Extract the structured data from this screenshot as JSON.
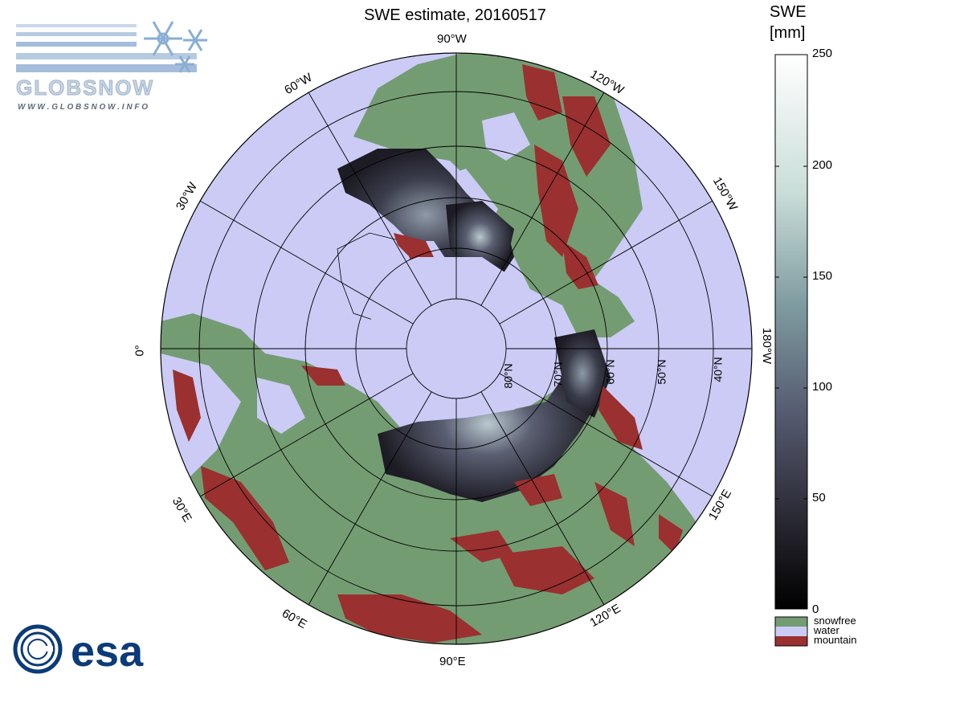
{
  "title": "SWE estimate, 20160517",
  "colorbar": {
    "label_line1": "SWE",
    "label_line2": "[mm]",
    "ticks": [
      "250",
      "200",
      "150",
      "100",
      "50",
      "0"
    ],
    "gradient": [
      "#ffffff",
      "#b7d3cf",
      "#6f8c90",
      "#4d5266",
      "#23222c",
      "#000000"
    ]
  },
  "legend": [
    {
      "label": "snowfree",
      "color": "#749c72"
    },
    {
      "label": "water",
      "color": "#cbcbf6"
    },
    {
      "label": "mountain",
      "color": "#9a3030"
    }
  ],
  "meridian_labels": {
    "w90": "90°W",
    "w120": "120°W",
    "w150": "150°W",
    "w180": "180°W",
    "e150": "150°E",
    "e120": "120°E",
    "e90": "90°E",
    "e60": "60°E",
    "e30": "30°E",
    "zero": "0°",
    "w30": "30°W",
    "w60": "60°W"
  },
  "parallel_labels": {
    "n40": "40°N",
    "n50": "50°N",
    "n60": "60°N",
    "n70": "70°N",
    "n80": "80°N"
  },
  "logos": {
    "globsnow_text": "GLOBSNOW",
    "globsnow_url": "W W W . G L O B S N O W . I N F O",
    "esa_text": "esa"
  },
  "colors": {
    "water": "#cbcbf6",
    "land": "#749c72",
    "mountain": "#9a3030",
    "snow_dark": "#1d1c24"
  }
}
